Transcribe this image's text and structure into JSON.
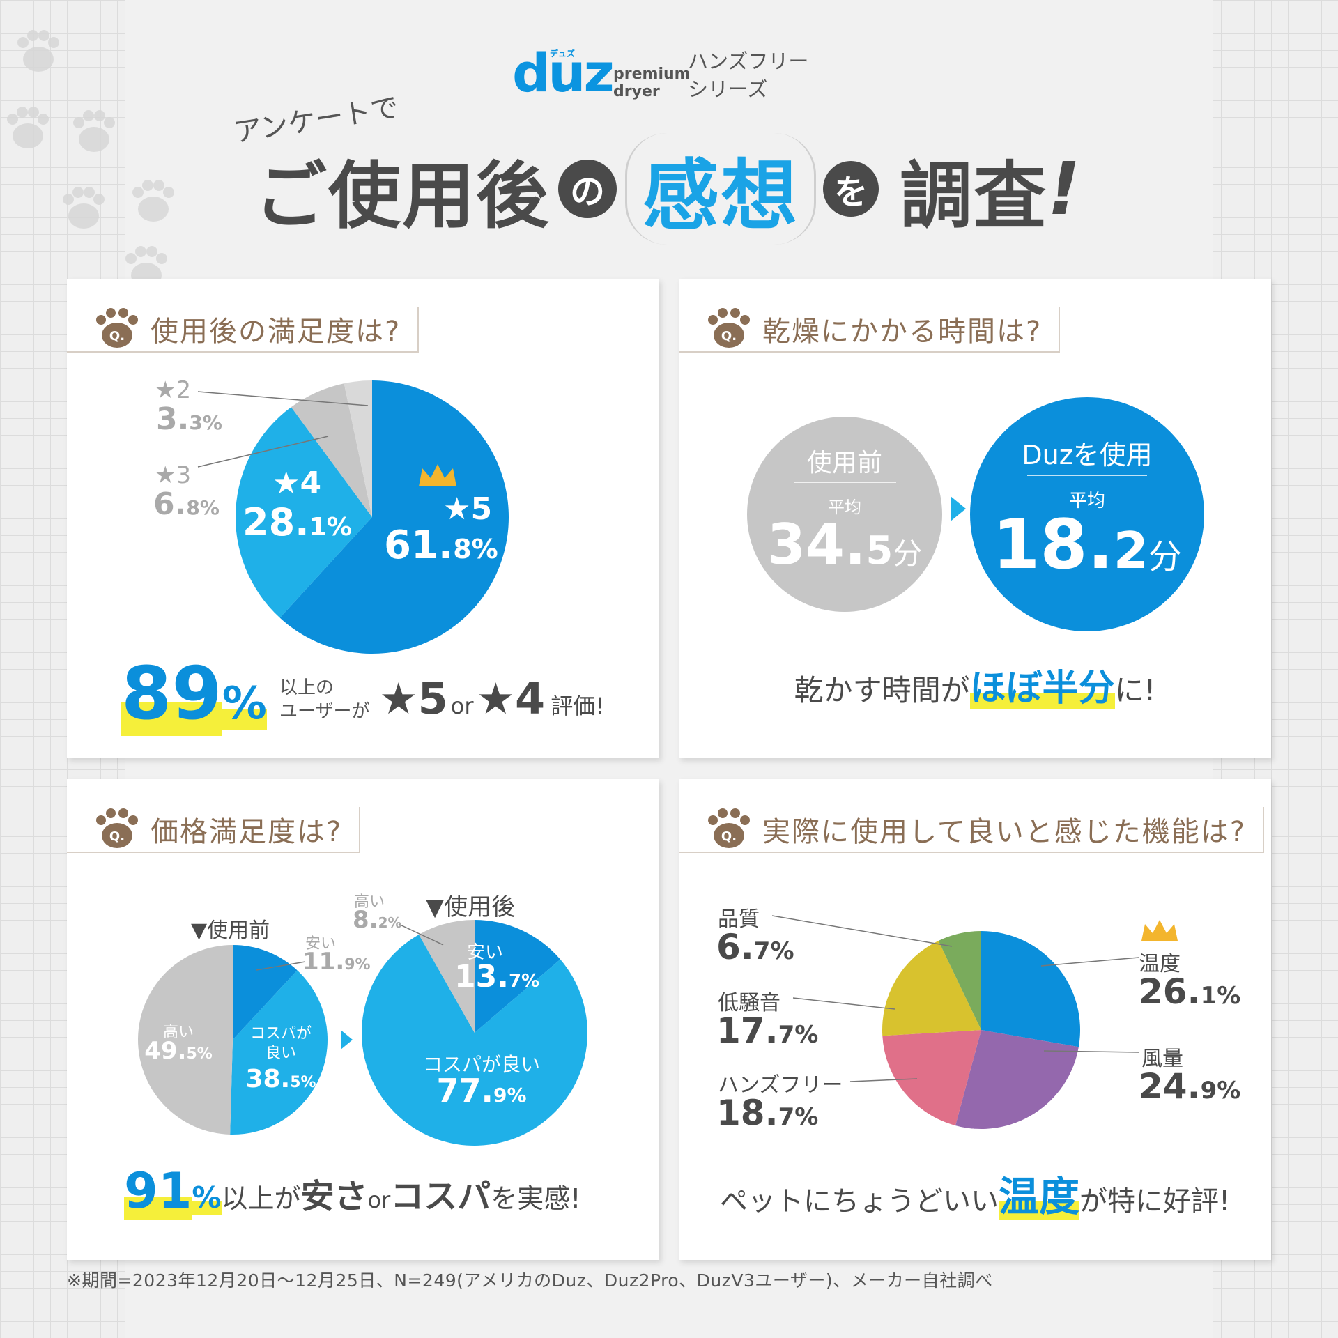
{
  "brand": {
    "logo": "duz",
    "kana": "デュズ",
    "sub_line1": "premium",
    "sub_line2": "dryer",
    "series_line1": "ハンズフリー",
    "series_line2": "シリーズ"
  },
  "header": {
    "pre_title": "アンケートで",
    "title_part1": "ご使用後",
    "title_no": "の",
    "title_highlight": "感想",
    "title_wo": "を",
    "title_part2": "調査",
    "title_bang": "!"
  },
  "colors": {
    "blue_dark": "#0b8fdb",
    "blue_light": "#1fb0e8",
    "gray": "#c6c6c6",
    "gray_light": "#d9d9d9",
    "green": "#7aab5c",
    "yellow": "#d8c22e",
    "pink": "#e07089",
    "purple": "#9468ad",
    "crown": "#f3b52d",
    "highlight": "#f5ef3a",
    "question": "#8a6e55"
  },
  "panel_satisfaction": {
    "question": "使用後の満足度は?",
    "question_icon": "paw-q-icon",
    "summary_value": "89",
    "summary_unit": "%",
    "summary_text_line1": "以上の",
    "summary_text_line2": "ユーザーが",
    "summary_star5": "★5",
    "summary_or": "or",
    "summary_star4": "★4",
    "summary_end": "評価!",
    "slice_labels": [
      {
        "name": "★5",
        "value": "61.",
        "decimal": "8%"
      },
      {
        "name": "★4",
        "value": "28.",
        "decimal": "1%"
      },
      {
        "name": "★3",
        "value": "6.",
        "decimal": "8%"
      },
      {
        "name": "★2",
        "value": "3.",
        "decimal": "3%"
      }
    ]
  },
  "panel_drying": {
    "question": "乾燥にかかる時間は?",
    "question_icon": "paw-q-icon",
    "before_label": "使用前",
    "before_avg": "平均",
    "before_value": "34.",
    "before_decimal": "5",
    "before_unit": "分",
    "after_label": "Duzを使用",
    "after_avg": "平均",
    "after_value": "18.",
    "after_decimal": "2",
    "after_unit": "分",
    "summary_pre": "乾かす時間が",
    "summary_highlight": "ほぼ半分",
    "summary_post": "に!"
  },
  "panel_price": {
    "question": "価格満足度は?",
    "question_icon": "paw-q-icon",
    "before_title": "▼使用前",
    "after_title": "▼使用後",
    "before_labels": {
      "high_name": "高い",
      "high_value": "49.",
      "high_decimal": "5%",
      "cheap_name": "安い",
      "cheap_value": "11.",
      "cheap_decimal": "9%",
      "value_name_line1": "コスパが",
      "value_name_line2": "良い",
      "value_value": "38.",
      "value_decimal": "5%"
    },
    "after_labels": {
      "high_name": "高い",
      "high_value": "8.",
      "high_decimal": "2%",
      "cheap_name": "安い",
      "cheap_value": "13.",
      "cheap_decimal": "7%",
      "value_name": "コスパが良い",
      "value_value": "77.",
      "value_decimal": "9%"
    },
    "summary_value": "91",
    "summary_unit": "%",
    "summary_mid": "以上が",
    "summary_bold1": "安さ",
    "summary_or": "or",
    "summary_bold2": "コスパ",
    "summary_end": "を実感!"
  },
  "panel_features": {
    "question": "実際に使用して良いと感じた機能は?",
    "question_icon": "paw-q-icon",
    "labels": [
      {
        "name": "温度",
        "value": "26.",
        "decimal": "1%"
      },
      {
        "name": "風量",
        "value": "24.",
        "decimal": "9%"
      },
      {
        "name": "ハンズフリー",
        "value": "18.",
        "decimal": "7%"
      },
      {
        "name": "低騒音",
        "value": "17.",
        "decimal": "7%"
      },
      {
        "name": "品質",
        "value": "6.",
        "decimal": "7%"
      }
    ],
    "summary_pre": "ペットにちょうどいい",
    "summary_highlight": "温度",
    "summary_post": "が特に好評!"
  },
  "chart_data": [
    {
      "type": "pie",
      "categories": [
        "★5",
        "★4",
        "★3",
        "★2"
      ],
      "values": [
        61.8,
        28.1,
        6.8,
        3.3
      ],
      "colors": [
        "#0b8fdb",
        "#1fb0e8",
        "#c6c6c6",
        "#d9d9d9"
      ]
    },
    {
      "type": "bar",
      "categories": [
        "使用前",
        "Duzを使用"
      ],
      "values": [
        34.5,
        18.2
      ],
      "ylabel": "分"
    },
    {
      "type": "pie",
      "title": "▼使用前",
      "categories": [
        "安い",
        "コスパが良い",
        "高い"
      ],
      "values": [
        11.9,
        38.5,
        49.5
      ],
      "colors": [
        "#0b8fdb",
        "#1fb0e8",
        "#c6c6c6"
      ]
    },
    {
      "type": "pie",
      "title": "▼使用後",
      "categories": [
        "安い",
        "コスパが良い",
        "高い"
      ],
      "values": [
        13.7,
        77.9,
        8.2
      ],
      "colors": [
        "#0b8fdb",
        "#1fb0e8",
        "#c6c6c6"
      ]
    },
    {
      "type": "pie",
      "categories": [
        "温度",
        "風量",
        "ハンズフリー",
        "低騒音",
        "品質"
      ],
      "values": [
        26.1,
        24.9,
        18.7,
        17.7,
        6.7
      ],
      "colors": [
        "#0b8fdb",
        "#9468ad",
        "#e07089",
        "#d8c22e",
        "#7aab5c"
      ]
    }
  ],
  "footnote": "※期間=2023年12月20日〜12月25日、N=249(アメリカのDuz、Duz2Pro、DuzV3ユーザー)、メーカー自社調べ"
}
